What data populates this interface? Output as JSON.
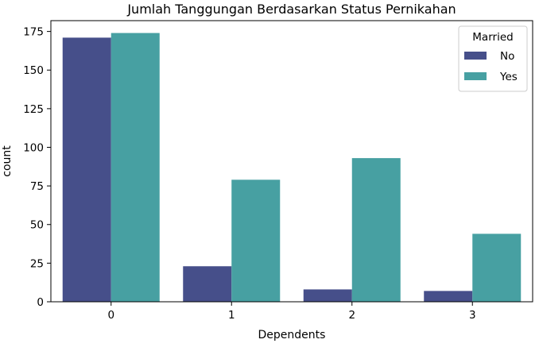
{
  "chart_data": {
    "type": "bar",
    "title": "Jumlah Tanggungan Berdasarkan Status Pernikahan",
    "xlabel": "Dependents",
    "ylabel": "count",
    "categories": [
      "0",
      "1",
      "2",
      "3"
    ],
    "series": [
      {
        "name": "No",
        "values": [
          171,
          23,
          8,
          7
        ],
        "color": "#464f8a"
      },
      {
        "name": "Yes",
        "values": [
          174,
          79,
          93,
          44
        ],
        "color": "#47a0a2"
      }
    ],
    "ylim": [
      0,
      182
    ],
    "yticks": [
      0,
      25,
      50,
      75,
      100,
      125,
      150,
      175
    ],
    "legend": {
      "title": "Married",
      "placement": "top-right"
    },
    "grid": false
  }
}
